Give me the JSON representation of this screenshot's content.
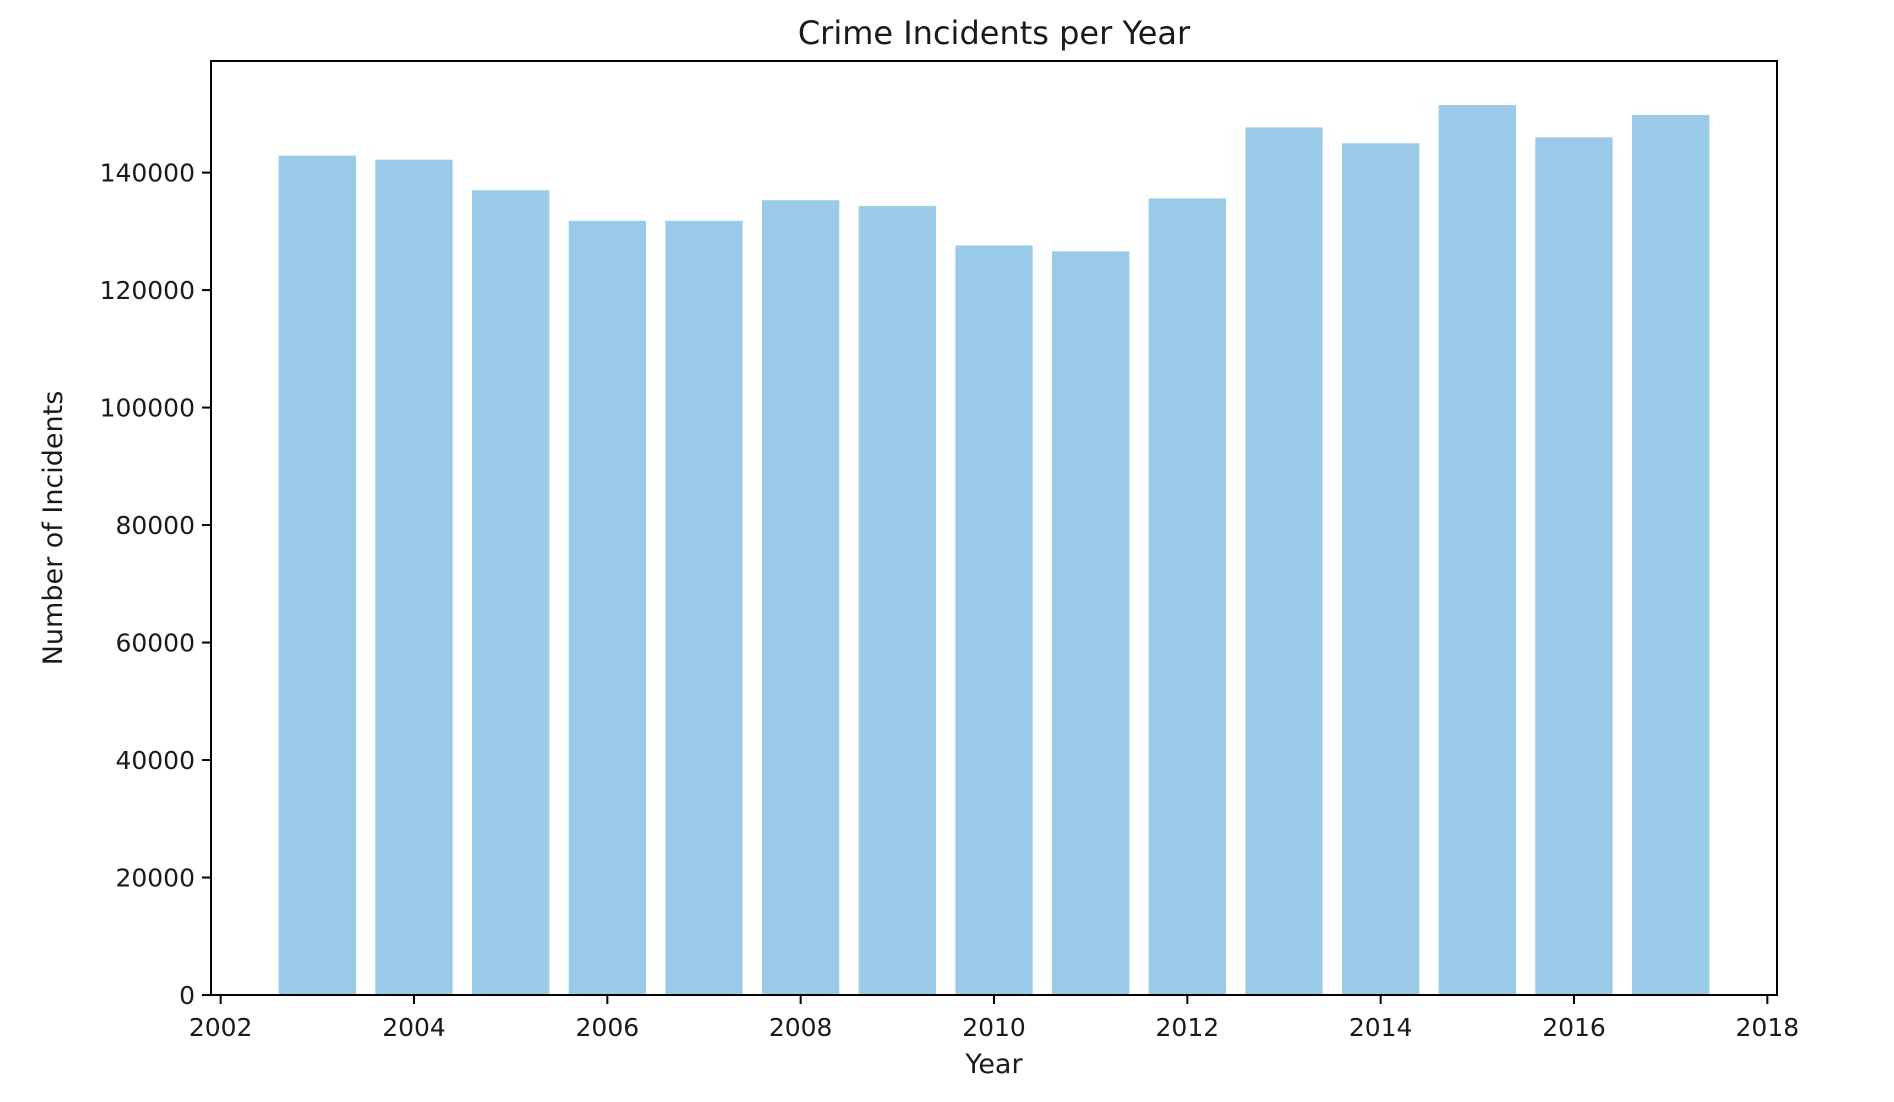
{
  "chart_data": {
    "type": "bar",
    "title": "Crime Incidents per Year",
    "xlabel": "Year",
    "ylabel": "Number of Incidents",
    "x": [
      2003,
      2004,
      2005,
      2006,
      2007,
      2008,
      2009,
      2010,
      2011,
      2012,
      2013,
      2014,
      2015,
      2016,
      2017
    ],
    "values": [
      142900,
      142200,
      137000,
      131800,
      131800,
      135300,
      134300,
      127600,
      126600,
      135600,
      147700,
      145000,
      151500,
      146000,
      149800
    ],
    "xlim": [
      2001.9,
      2018.1
    ],
    "ylim": [
      0,
      159000
    ],
    "xticks": [
      "2002",
      "2004",
      "2006",
      "2008",
      "2010",
      "2012",
      "2014",
      "2016",
      "2018"
    ],
    "yticks": [
      "0",
      "20000",
      "40000",
      "60000",
      "80000",
      "100000",
      "120000",
      "140000"
    ],
    "bar_color": "#99cbe8",
    "grid": false,
    "legend": "none"
  }
}
